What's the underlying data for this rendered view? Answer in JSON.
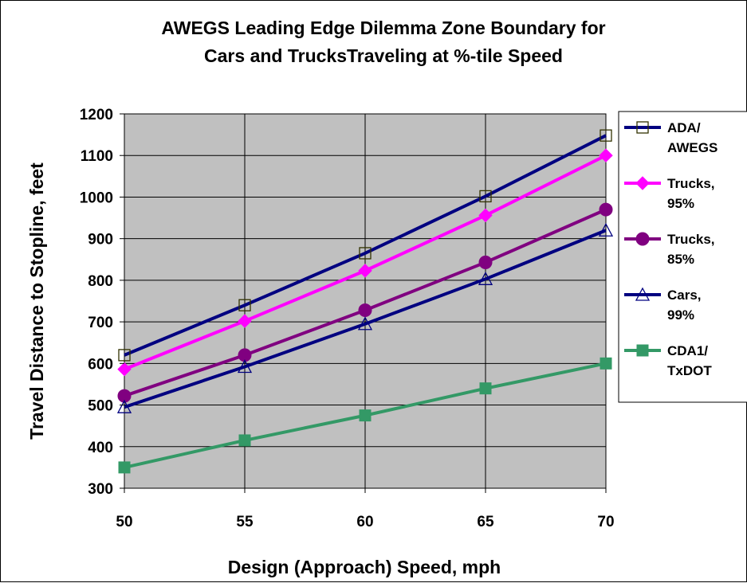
{
  "chart_data": {
    "type": "line",
    "title_lines": [
      "AWEGS Leading Edge Dilemma Zone Boundary for",
      "Cars and TrucksTraveling at %-tile Speed"
    ],
    "xlabel": "Design (Approach) Speed, mph",
    "ylabel": "Travel Distance to Stopline, feet",
    "x": [
      50,
      55,
      60,
      65,
      70
    ],
    "xlim": [
      50,
      70
    ],
    "ylim": [
      300,
      1200
    ],
    "yticks": [
      300,
      400,
      500,
      600,
      700,
      800,
      900,
      1000,
      1100,
      1200
    ],
    "grid": true,
    "plot_background": "#c0c0c0",
    "legend_position": "right",
    "series": [
      {
        "name_lines": [
          "ADA/",
          "AWEGS"
        ],
        "color": "#000080",
        "marker": "square-open",
        "values": [
          620,
          740,
          865,
          1002,
          1148
        ]
      },
      {
        "name_lines": [
          "Trucks,",
          "95%"
        ],
        "color": "#ff00ff",
        "marker": "diamond",
        "values": [
          586,
          702,
          823,
          956,
          1100
        ]
      },
      {
        "name_lines": [
          "Trucks,",
          "85%"
        ],
        "color": "#800080",
        "marker": "circle",
        "values": [
          522,
          620,
          728,
          843,
          970
        ]
      },
      {
        "name_lines": [
          "Cars,",
          "99%"
        ],
        "color": "#000080",
        "marker": "triangle-open",
        "values": [
          495,
          592,
          695,
          803,
          920
        ]
      },
      {
        "name_lines": [
          "CDA1/",
          "TxDOT"
        ],
        "color": "#339966",
        "marker": "square",
        "values": [
          350,
          415,
          475,
          540,
          600
        ]
      }
    ]
  }
}
